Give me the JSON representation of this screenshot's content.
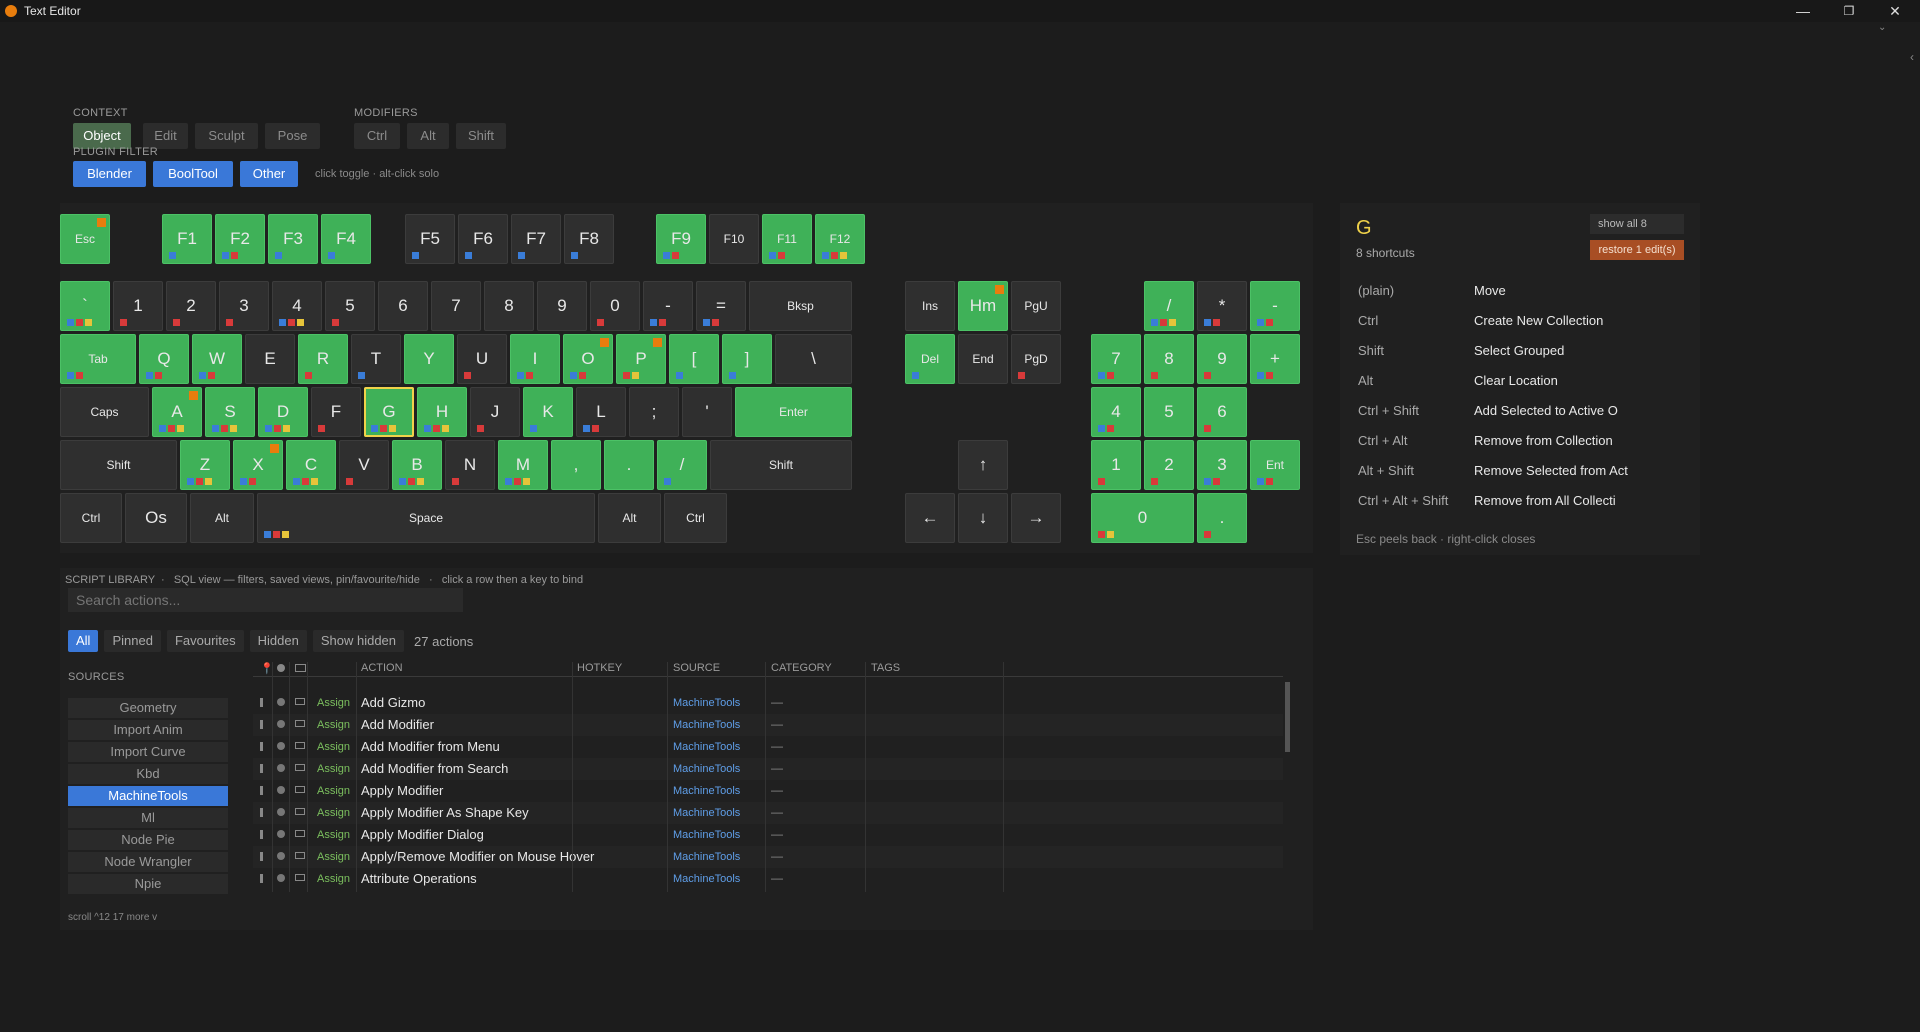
{
  "window": {
    "title": "Text Editor",
    "minimize": "—",
    "maximize": "❐",
    "close": "✕"
  },
  "context": {
    "label": "CONTEXT",
    "items": [
      "Object",
      "Edit",
      "Sculpt",
      "Pose"
    ],
    "active": "Object"
  },
  "modifiers": {
    "label": "MODIFIERS",
    "items": [
      "Ctrl",
      "Alt",
      "Shift"
    ]
  },
  "plugin_filter": {
    "label": "PLUGIN FILTER",
    "items": [
      "Blender",
      "BoolTool",
      "Other"
    ],
    "hint": "click toggle · alt-click solo"
  },
  "keyboard": {
    "function_row": [
      "Esc",
      "F1",
      "F2",
      "F3",
      "F4",
      "F5",
      "F6",
      "F7",
      "F8",
      "F9",
      "F10",
      "F11",
      "F12"
    ],
    "number_row": [
      "`",
      "1",
      "2",
      "3",
      "4",
      "5",
      "6",
      "7",
      "8",
      "9",
      "0",
      "-",
      "=",
      "Bksp"
    ],
    "qwerty_row": [
      "Tab",
      "Q",
      "W",
      "E",
      "R",
      "T",
      "Y",
      "U",
      "I",
      "O",
      "P",
      "[",
      "]",
      "\\"
    ],
    "home_row": [
      "Caps",
      "A",
      "S",
      "D",
      "F",
      "G",
      "H",
      "J",
      "K",
      "L",
      ";",
      "'",
      "Enter"
    ],
    "shift_row": [
      "Shift",
      "Z",
      "X",
      "C",
      "V",
      "B",
      "N",
      "M",
      ",",
      ".",
      "/",
      "Shift"
    ],
    "bottom_row": [
      "Ctrl",
      "Os",
      "Alt",
      "Space",
      "Alt",
      "Ctrl"
    ],
    "nav": [
      "Ins",
      "Hm",
      "PgU",
      "Del",
      "End",
      "PgD"
    ],
    "arrows": [
      "↑",
      "←",
      "↓",
      "→"
    ],
    "numpad": [
      "/",
      "*",
      "-",
      "7",
      "8",
      "9",
      "+",
      "4",
      "5",
      "6",
      "1",
      "2",
      "3",
      "Ent",
      "0",
      "."
    ],
    "selected_key": "G"
  },
  "detail": {
    "key": "G",
    "count": "8 shortcuts",
    "show_all": "show all 8",
    "restore": "restore 1 edit(s)",
    "shortcuts": [
      {
        "mod": "(plain)",
        "action": "Move"
      },
      {
        "mod": "Ctrl",
        "action": "Create New Collection"
      },
      {
        "mod": "Shift",
        "action": "Select Grouped"
      },
      {
        "mod": "Alt",
        "action": "Clear Location"
      },
      {
        "mod": "Ctrl + Shift",
        "action": "Add Selected to Active O"
      },
      {
        "mod": "Ctrl + Alt",
        "action": "Remove from Collection"
      },
      {
        "mod": "Alt + Shift",
        "action": "Remove Selected from Act"
      },
      {
        "mod": "Ctrl + Alt + Shift",
        "action": "Remove from All Collecti"
      }
    ],
    "footer": "Esc peels back · right-click closes"
  },
  "library": {
    "title": "SCRIPT LIBRARY",
    "subtitle": "SQL view — filters, saved views, pin/favourite/hide",
    "hint": "click a row then a key to bind",
    "search_placeholder": "Search actions...",
    "tabs": [
      "All",
      "Pinned",
      "Favourites",
      "Hidden",
      "Show hidden"
    ],
    "count": "27 actions",
    "sources_label": "SOURCES",
    "sources": [
      "Geometry",
      "Import Anim",
      "Import Curve",
      "Kbd",
      "MachineTools",
      "Ml",
      "Node Pie",
      "Node Wrangler",
      "Npie"
    ],
    "active_source": "MachineTools",
    "scroll_hint": "scroll ^12  17 more v",
    "columns": [
      "ACTION",
      "HOTKEY",
      "SOURCE",
      "CATEGORY",
      "TAGS"
    ],
    "rows": [
      {
        "assign": "Assign",
        "action": "Add Gizmo",
        "source": "MachineTools",
        "category": "—"
      },
      {
        "assign": "Assign",
        "action": "Add Modifier",
        "source": "MachineTools",
        "category": "—"
      },
      {
        "assign": "Assign",
        "action": "Add Modifier from Menu",
        "source": "MachineTools",
        "category": "—"
      },
      {
        "assign": "Assign",
        "action": "Add Modifier from Search",
        "source": "MachineTools",
        "category": "—"
      },
      {
        "assign": "Assign",
        "action": "Apply Modifier",
        "source": "MachineTools",
        "category": "—"
      },
      {
        "assign": "Assign",
        "action": "Apply Modifier As Shape Key",
        "source": "MachineTools",
        "category": "—"
      },
      {
        "assign": "Assign",
        "action": "Apply Modifier Dialog",
        "source": "MachineTools",
        "category": "—"
      },
      {
        "assign": "Assign",
        "action": "Apply/Remove Modifier on Mouse Hover",
        "source": "MachineTools",
        "category": "—"
      },
      {
        "assign": "Assign",
        "action": "Attribute Operations",
        "source": "MachineTools",
        "category": "—"
      }
    ]
  }
}
